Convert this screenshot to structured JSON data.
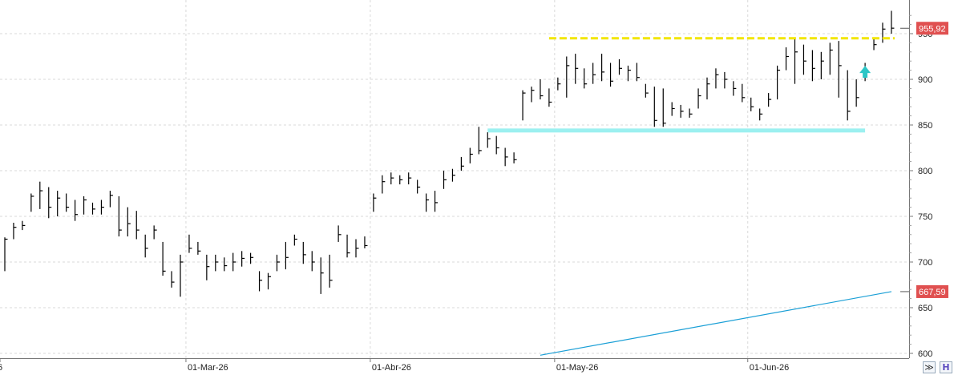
{
  "chart_data": {
    "type": "ohlc",
    "title": "",
    "xlabel": "",
    "ylabel": "",
    "ylim": [
      600,
      980
    ],
    "y_ticks": [
      600,
      650,
      700,
      750,
      800,
      850,
      900,
      950
    ],
    "x_tick_labels": [
      "6",
      "01-Mar-26",
      "01-Abr-26",
      "01-May-26",
      "01-Jun-26"
    ],
    "grid": true,
    "colors": {
      "bars": "#000000",
      "ma_line": "#1a9fd6",
      "resistance": "#f2e600",
      "support": "#9cf0f0",
      "tag": "#e05050",
      "arrow": "#2cc6c6"
    },
    "bars": [
      {
        "h": 727,
        "l": 690,
        "c": 725
      },
      {
        "h": 743,
        "l": 725,
        "c": 738
      },
      {
        "h": 745,
        "l": 735,
        "c": 740
      },
      {
        "h": 775,
        "l": 755,
        "c": 772
      },
      {
        "h": 788,
        "l": 758,
        "c": 778
      },
      {
        "h": 782,
        "l": 748,
        "c": 760
      },
      {
        "h": 778,
        "l": 750,
        "c": 770
      },
      {
        "h": 775,
        "l": 755,
        "c": 760
      },
      {
        "h": 768,
        "l": 745,
        "c": 752
      },
      {
        "h": 772,
        "l": 752,
        "c": 768
      },
      {
        "h": 765,
        "l": 752,
        "c": 758
      },
      {
        "h": 768,
        "l": 752,
        "c": 760
      },
      {
        "h": 778,
        "l": 760,
        "c": 773
      },
      {
        "h": 772,
        "l": 728,
        "c": 735
      },
      {
        "h": 760,
        "l": 728,
        "c": 742
      },
      {
        "h": 756,
        "l": 725,
        "c": 735
      },
      {
        "h": 730,
        "l": 705,
        "c": 715
      },
      {
        "h": 740,
        "l": 725,
        "c": 735
      },
      {
        "h": 722,
        "l": 685,
        "c": 690
      },
      {
        "h": 690,
        "l": 672,
        "c": 678
      },
      {
        "h": 708,
        "l": 662,
        "c": 700
      },
      {
        "h": 730,
        "l": 710,
        "c": 715
      },
      {
        "h": 722,
        "l": 708,
        "c": 712
      },
      {
        "h": 708,
        "l": 680,
        "c": 695
      },
      {
        "h": 708,
        "l": 690,
        "c": 700
      },
      {
        "h": 705,
        "l": 690,
        "c": 696
      },
      {
        "h": 710,
        "l": 690,
        "c": 700
      },
      {
        "h": 712,
        "l": 695,
        "c": 704
      },
      {
        "h": 710,
        "l": 698,
        "c": 705
      },
      {
        "h": 690,
        "l": 668,
        "c": 680
      },
      {
        "h": 688,
        "l": 670,
        "c": 684
      },
      {
        "h": 708,
        "l": 690,
        "c": 700
      },
      {
        "h": 722,
        "l": 692,
        "c": 705
      },
      {
        "h": 730,
        "l": 718,
        "c": 725
      },
      {
        "h": 722,
        "l": 698,
        "c": 708
      },
      {
        "h": 712,
        "l": 690,
        "c": 700
      },
      {
        "h": 705,
        "l": 665,
        "c": 688
      },
      {
        "h": 708,
        "l": 672,
        "c": 680
      },
      {
        "h": 740,
        "l": 722,
        "c": 730
      },
      {
        "h": 730,
        "l": 705,
        "c": 710
      },
      {
        "h": 725,
        "l": 705,
        "c": 715
      },
      {
        "h": 728,
        "l": 715,
        "c": 718
      },
      {
        "h": 775,
        "l": 755,
        "c": 770
      },
      {
        "h": 795,
        "l": 775,
        "c": 788
      },
      {
        "h": 798,
        "l": 785,
        "c": 792
      },
      {
        "h": 795,
        "l": 785,
        "c": 790
      },
      {
        "h": 798,
        "l": 785,
        "c": 792
      },
      {
        "h": 790,
        "l": 775,
        "c": 782
      },
      {
        "h": 775,
        "l": 755,
        "c": 768
      },
      {
        "h": 778,
        "l": 755,
        "c": 765
      },
      {
        "h": 800,
        "l": 780,
        "c": 790
      },
      {
        "h": 802,
        "l": 788,
        "c": 795
      },
      {
        "h": 815,
        "l": 800,
        "c": 805
      },
      {
        "h": 825,
        "l": 808,
        "c": 818
      },
      {
        "h": 848,
        "l": 818,
        "c": 822
      },
      {
        "h": 842,
        "l": 825,
        "c": 835
      },
      {
        "h": 838,
        "l": 818,
        "c": 825
      },
      {
        "h": 825,
        "l": 805,
        "c": 815
      },
      {
        "h": 820,
        "l": 808,
        "c": 812
      },
      {
        "h": 888,
        "l": 855,
        "c": 885
      },
      {
        "h": 892,
        "l": 875,
        "c": 888
      },
      {
        "h": 900,
        "l": 878,
        "c": 882
      },
      {
        "h": 890,
        "l": 870,
        "c": 875
      },
      {
        "h": 902,
        "l": 888,
        "c": 895
      },
      {
        "h": 925,
        "l": 880,
        "c": 915
      },
      {
        "h": 928,
        "l": 895,
        "c": 912
      },
      {
        "h": 912,
        "l": 890,
        "c": 895
      },
      {
        "h": 918,
        "l": 895,
        "c": 905
      },
      {
        "h": 928,
        "l": 898,
        "c": 908
      },
      {
        "h": 918,
        "l": 892,
        "c": 898
      },
      {
        "h": 922,
        "l": 905,
        "c": 912
      },
      {
        "h": 915,
        "l": 898,
        "c": 910
      },
      {
        "h": 918,
        "l": 898,
        "c": 902
      },
      {
        "h": 895,
        "l": 880,
        "c": 885
      },
      {
        "h": 892,
        "l": 848,
        "c": 855
      },
      {
        "h": 890,
        "l": 848,
        "c": 852
      },
      {
        "h": 875,
        "l": 860,
        "c": 868
      },
      {
        "h": 872,
        "l": 858,
        "c": 865
      },
      {
        "h": 868,
        "l": 858,
        "c": 862
      },
      {
        "h": 890,
        "l": 868,
        "c": 882
      },
      {
        "h": 902,
        "l": 878,
        "c": 895
      },
      {
        "h": 912,
        "l": 890,
        "c": 905
      },
      {
        "h": 908,
        "l": 890,
        "c": 900
      },
      {
        "h": 898,
        "l": 882,
        "c": 890
      },
      {
        "h": 895,
        "l": 875,
        "c": 880
      },
      {
        "h": 880,
        "l": 865,
        "c": 870
      },
      {
        "h": 868,
        "l": 855,
        "c": 862
      },
      {
        "h": 885,
        "l": 870,
        "c": 878
      },
      {
        "h": 915,
        "l": 878,
        "c": 910
      },
      {
        "h": 935,
        "l": 910,
        "c": 925
      },
      {
        "h": 945,
        "l": 895,
        "c": 930
      },
      {
        "h": 938,
        "l": 905,
        "c": 920
      },
      {
        "h": 932,
        "l": 898,
        "c": 912
      },
      {
        "h": 930,
        "l": 900,
        "c": 920
      },
      {
        "h": 940,
        "l": 905,
        "c": 932
      },
      {
        "h": 942,
        "l": 880,
        "c": 915
      },
      {
        "h": 910,
        "l": 855,
        "c": 865
      },
      {
        "h": 900,
        "l": 870,
        "c": 880
      },
      {
        "h": 918,
        "l": 898,
        "c": 910
      },
      {
        "h": 945,
        "l": 932,
        "c": 938
      },
      {
        "h": 962,
        "l": 940,
        "c": 955
      },
      {
        "h": 975,
        "l": 950,
        "c": 956
      }
    ],
    "x_tick_bar_index": [
      0,
      21,
      42,
      63,
      85
    ],
    "moving_average": {
      "start_bar": 61,
      "start_value": 598,
      "end_value": 667.59
    },
    "resistance_line": {
      "value": 945,
      "start_bar": 62,
      "end_bar": 101
    },
    "support_band": {
      "value": 844,
      "start_bar": 55,
      "end_bar": 98
    },
    "arrow": {
      "bar": 98,
      "value": 906,
      "direction": "up"
    },
    "price_tags": [
      {
        "label": "955,92",
        "value": 955.92,
        "color": "#e05050"
      },
      {
        "label": "667,59",
        "value": 667.59,
        "color": "#e05050"
      }
    ],
    "scroll_label": "≫",
    "save_label": "H"
  }
}
